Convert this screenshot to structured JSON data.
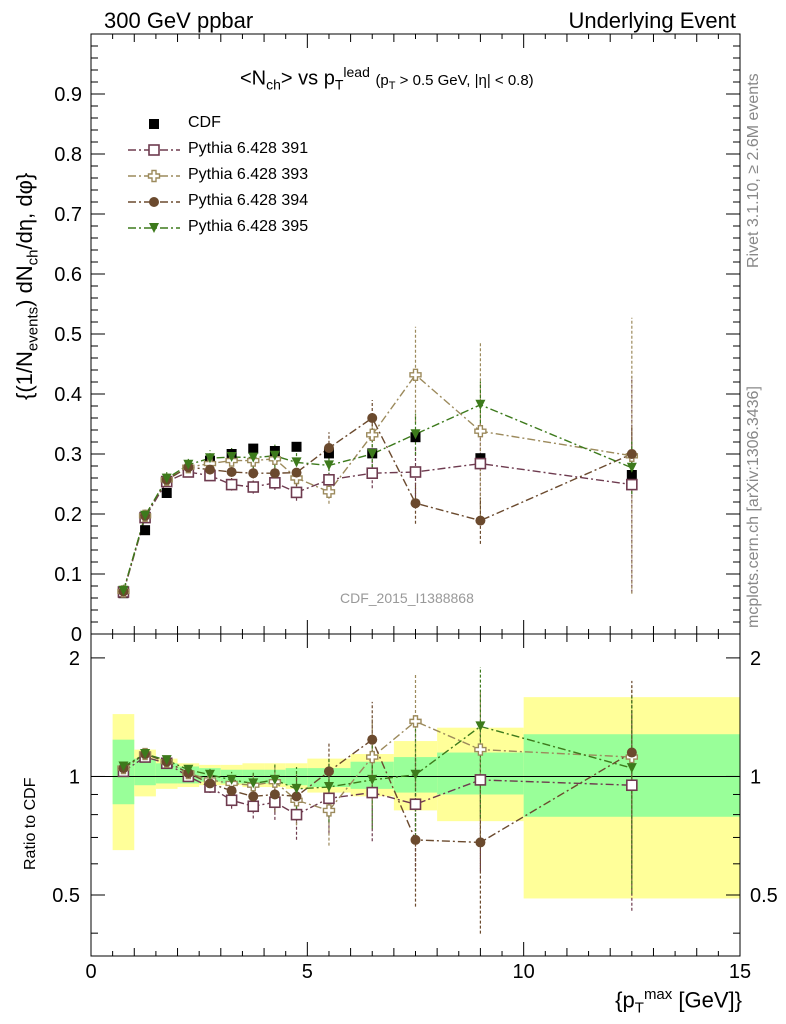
{
  "header": {
    "left": "300 GeV ppbar",
    "right": "Underlying Event"
  },
  "side_labels": {
    "rivet": "Rivet 3.1.10, ≥ 2.6M events",
    "mcplots": "mcplots.cern.ch [arXiv:1306.3436]"
  },
  "reference": "CDF_2015_I1388868",
  "colors": {
    "cdf": "#000000",
    "p391": "#6e3b4f",
    "p393": "#9c8a5c",
    "p394": "#6b4a2e",
    "p395": "#3d7a1c",
    "band_inner": "#99ff99",
    "band_outer": "#ffff99"
  },
  "chart_data": [
    {
      "type": "scatter",
      "title": "<N_ch> vs p_T^lead (p_T > 0.5 GeV, |η| < 0.8)",
      "xlabel": "{p_T^max [GeV]}",
      "ylabel": "{(1/N_events) dN_ch/dη, dφ}",
      "xlim": [
        0,
        15
      ],
      "ylim": [
        0,
        1.0
      ],
      "yticks": [
        "0",
        "0.1",
        "0.2",
        "0.3",
        "0.4",
        "0.5",
        "0.6",
        "0.7",
        "0.8",
        "0.9"
      ],
      "xticks": [
        "0",
        "5",
        "10",
        "15"
      ],
      "legend_position": "top-left",
      "x": [
        0.75,
        1.25,
        1.75,
        2.25,
        2.75,
        3.25,
        3.75,
        4.25,
        4.75,
        5.5,
        6.5,
        7.5,
        9.0,
        12.5
      ],
      "series": [
        {
          "name": "CDF",
          "marker": "square-filled",
          "values": [
            0.068,
            0.173,
            0.235,
            0.272,
            0.289,
            0.3,
            0.309,
            0.305,
            0.312,
            0.301,
            0.301,
            0.328,
            0.293,
            0.265
          ],
          "errors": [
            0.003,
            0.005,
            0.006,
            0.007,
            0.008,
            0.008,
            0.009,
            0.01,
            0.011,
            0.012,
            0.014,
            0.018,
            0.022,
            0.03
          ]
        },
        {
          "name": "Pythia 6.428 391",
          "marker": "square-open",
          "values": [
            0.07,
            0.194,
            0.254,
            0.27,
            0.264,
            0.249,
            0.245,
            0.252,
            0.236,
            0.257,
            0.268,
            0.27,
            0.284,
            0.249
          ],
          "errors": [
            0.002,
            0.005,
            0.006,
            0.007,
            0.009,
            0.01,
            0.011,
            0.012,
            0.014,
            0.018,
            0.025,
            0.04,
            0.07,
            0.18
          ]
        },
        {
          "name": "Pythia 6.428 393",
          "marker": "cross-open",
          "values": [
            0.071,
            0.197,
            0.257,
            0.278,
            0.284,
            0.289,
            0.289,
            0.292,
            0.26,
            0.237,
            0.332,
            0.432,
            0.338,
            0.297
          ],
          "errors": [
            0.002,
            0.005,
            0.006,
            0.007,
            0.009,
            0.01,
            0.011,
            0.012,
            0.014,
            0.02,
            0.03,
            0.08,
            0.15,
            0.23
          ]
        },
        {
          "name": "Pythia 6.428 394",
          "marker": "circle-filled",
          "values": [
            0.071,
            0.197,
            0.257,
            0.278,
            0.274,
            0.27,
            0.268,
            0.268,
            0.269,
            0.31,
            0.36,
            0.218,
            0.189,
            0.3
          ]
        },
        {
          "name": "Pythia 6.428 395",
          "marker": "triangle-down-filled",
          "values": [
            0.072,
            0.197,
            0.259,
            0.282,
            0.293,
            0.295,
            0.294,
            0.297,
            0.286,
            0.281,
            0.3,
            0.333,
            0.382,
            0.277
          ]
        }
      ]
    },
    {
      "type": "scatter",
      "title": "",
      "xlabel": "{p_T^max [GeV]}",
      "ylabel": "Ratio to CDF",
      "xlim": [
        0,
        15
      ],
      "ylim": [
        0.35,
        2.3
      ],
      "yticks": [
        "0.5",
        "1",
        "2"
      ],
      "bins": [
        [
          0.5,
          1.0
        ],
        [
          1.0,
          1.5
        ],
        [
          1.5,
          2.0
        ],
        [
          2.0,
          2.5
        ],
        [
          2.5,
          3.0
        ],
        [
          3.0,
          3.5
        ],
        [
          3.5,
          4.0
        ],
        [
          4.0,
          4.5
        ],
        [
          4.5,
          5.0
        ],
        [
          5.0,
          6.0
        ],
        [
          6.0,
          7.0
        ],
        [
          7.0,
          8.0
        ],
        [
          8.0,
          10.0
        ],
        [
          10.0,
          15.0
        ]
      ],
      "band_inner": [
        [
          0.85,
          1.24
        ],
        [
          0.95,
          1.11
        ],
        [
          0.96,
          1.08
        ],
        [
          0.96,
          1.06
        ],
        [
          0.97,
          1.05
        ],
        [
          0.96,
          1.04
        ],
        [
          0.96,
          1.04
        ],
        [
          0.96,
          1.04
        ],
        [
          0.95,
          1.05
        ],
        [
          0.94,
          1.05
        ],
        [
          0.93,
          1.09
        ],
        [
          0.91,
          1.12
        ],
        [
          0.9,
          1.15
        ],
        [
          0.79,
          1.28
        ]
      ],
      "band_outer": [
        [
          0.65,
          1.44
        ],
        [
          0.89,
          1.17
        ],
        [
          0.93,
          1.11
        ],
        [
          0.94,
          1.08
        ],
        [
          0.95,
          1.07
        ],
        [
          0.95,
          1.07
        ],
        [
          0.94,
          1.08
        ],
        [
          0.94,
          1.08
        ],
        [
          0.93,
          1.08
        ],
        [
          0.91,
          1.11
        ],
        [
          0.89,
          1.14
        ],
        [
          0.82,
          1.23
        ],
        [
          0.77,
          1.33
        ],
        [
          0.49,
          1.59
        ]
      ],
      "x": [
        0.75,
        1.25,
        1.75,
        2.25,
        2.75,
        3.25,
        3.75,
        4.25,
        4.75,
        5.5,
        6.5,
        7.5,
        9.0,
        12.5
      ],
      "series": [
        {
          "name": "Pythia 6.428 391",
          "marker": "square-open",
          "values": [
            1.03,
            1.12,
            1.08,
            1.0,
            0.94,
            0.87,
            0.84,
            0.86,
            0.8,
            0.88,
            0.91,
            0.85,
            0.98,
            0.95
          ]
        },
        {
          "name": "Pythia 6.428 393",
          "marker": "cross-open",
          "values": [
            1.05,
            1.14,
            1.09,
            1.02,
            0.98,
            0.96,
            0.95,
            0.97,
            0.87,
            0.82,
            1.12,
            1.38,
            1.17,
            1.12
          ]
        },
        {
          "name": "Pythia 6.428 394",
          "marker": "circle-filled",
          "values": [
            1.05,
            1.14,
            1.09,
            1.02,
            0.96,
            0.92,
            0.89,
            0.9,
            0.89,
            1.03,
            1.24,
            0.69,
            0.68,
            1.15
          ]
        },
        {
          "name": "Pythia 6.428 395",
          "marker": "triangle-down-filled",
          "values": [
            1.06,
            1.14,
            1.1,
            1.04,
            1.01,
            0.98,
            0.96,
            0.98,
            0.93,
            0.94,
            0.98,
            1.01,
            1.34,
            1.05
          ]
        }
      ]
    }
  ]
}
